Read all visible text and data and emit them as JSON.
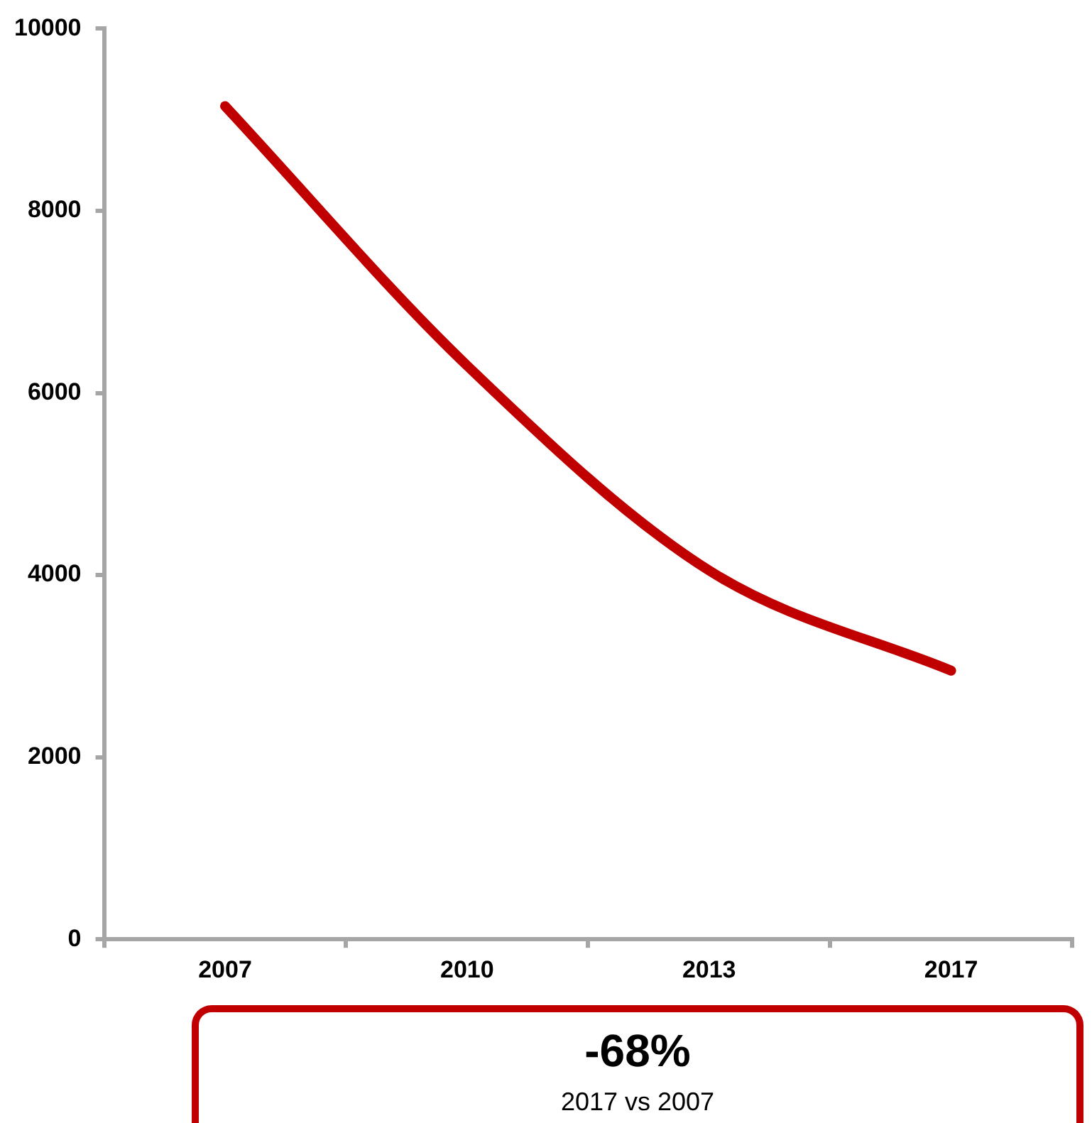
{
  "chart_data": {
    "type": "line",
    "categories": [
      "2007",
      "2010",
      "2013",
      "2017"
    ],
    "series": [
      {
        "color": "#c00000",
        "values": [
          9150,
          6300,
          4050,
          2950
        ]
      }
    ],
    "ylim": [
      0,
      10000
    ],
    "yticks": [
      0,
      2000,
      4000,
      6000,
      8000,
      10000
    ],
    "grid": false,
    "legend": false,
    "marker": "none",
    "line_style": "solid",
    "annotations": [
      "-68%",
      "2017 vs 2007"
    ]
  }
}
